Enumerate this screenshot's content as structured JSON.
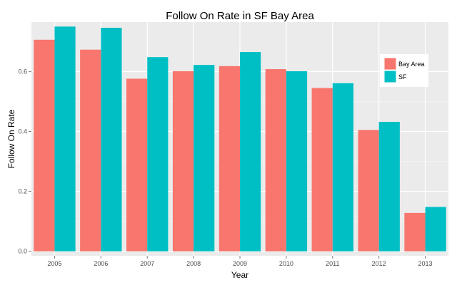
{
  "chart_data": {
    "type": "bar",
    "title": "Follow On Rate in SF Bay Area",
    "xlabel": "Year",
    "ylabel": "Follow On Rate",
    "categories": [
      "2005",
      "2006",
      "2007",
      "2008",
      "2009",
      "2010",
      "2011",
      "2012",
      "2013"
    ],
    "series": [
      {
        "name": "Bay Area",
        "color": "#F8766D",
        "values": [
          0.706,
          0.673,
          0.576,
          0.601,
          0.618,
          0.608,
          0.545,
          0.405,
          0.128
        ]
      },
      {
        "name": "SF",
        "color": "#00BFC4",
        "values": [
          0.75,
          0.746,
          0.648,
          0.622,
          0.665,
          0.601,
          0.561,
          0.432,
          0.148
        ]
      }
    ],
    "ylim": [
      -0.015,
      0.765
    ],
    "yticks": [
      0.0,
      0.2,
      0.4,
      0.6
    ],
    "ytick_labels": [
      "0.0",
      "0.2",
      "0.4",
      "0.6"
    ],
    "grid": true,
    "legend_position": "right"
  },
  "colors": {
    "panel_background": "#EBEBEB",
    "grid_major": "#FFFFFF",
    "grid_minor": "#F5F5F5"
  }
}
